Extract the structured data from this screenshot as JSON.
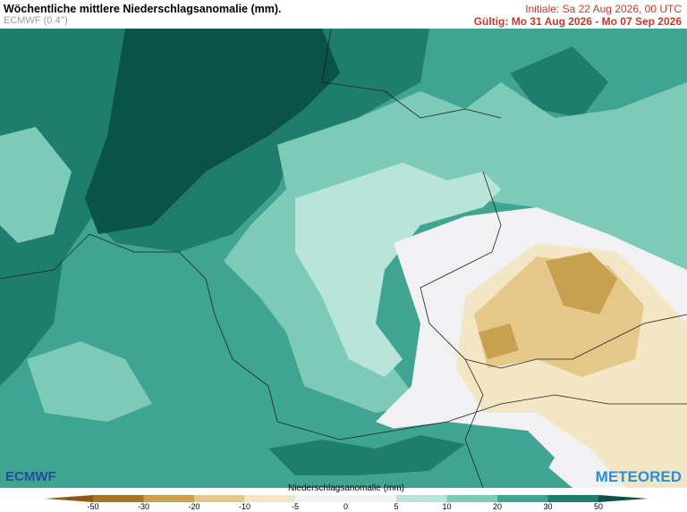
{
  "header": {
    "title": "Wöchentliche mittlere Niederschlagsanomalie (mm).",
    "model": "ECMWF (0.4°)",
    "initial": "Initiale:  Sa 22 Aug 2026, 00 UTC",
    "valid": "Gültig: Mo 31 Aug 2026 - Mo 07 Sep 2026"
  },
  "logos": {
    "left": "ECMWF",
    "right": "METEORED"
  },
  "legend": {
    "title": "Niederschlagsanomalie (mm)",
    "ticks": [
      -50,
      -30,
      -20,
      -10,
      -5,
      0,
      5,
      10,
      20,
      30,
      50
    ],
    "colors": [
      "#8a5a14",
      "#a8762a",
      "#c9a050",
      "#e3c88a",
      "#f3e6c4",
      "#f1f1f3",
      "#f1f1f3",
      "#b9e4da",
      "#7dcab8",
      "#3fa592",
      "#1f7d6d",
      "#0b5247"
    ]
  }
}
